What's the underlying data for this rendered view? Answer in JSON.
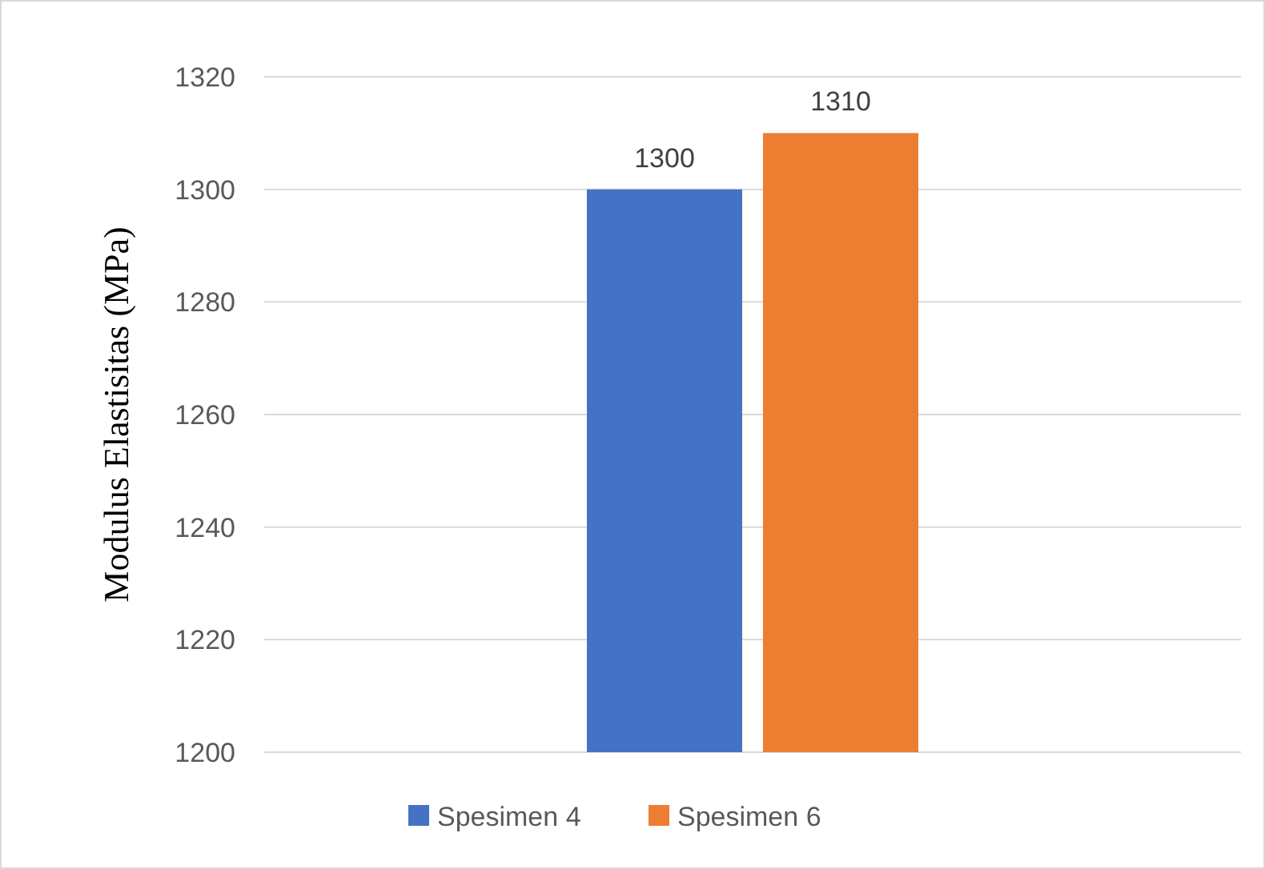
{
  "chart_data": {
    "type": "bar",
    "ylabel": "Modulus Elastisitas (MPa)",
    "categories": [
      null
    ],
    "series": [
      {
        "name": "Spesimen 4",
        "color": "#4472c4",
        "values": [
          1300
        ]
      },
      {
        "name": "Spesimen 6",
        "color": "#ed7d31",
        "values": [
          1310
        ]
      }
    ],
    "ylim": [
      1200,
      1320
    ],
    "yticks": [
      1200,
      1220,
      1240,
      1260,
      1280,
      1300,
      1320
    ],
    "grid": "y",
    "legend": "bottom",
    "data_labels": true
  }
}
